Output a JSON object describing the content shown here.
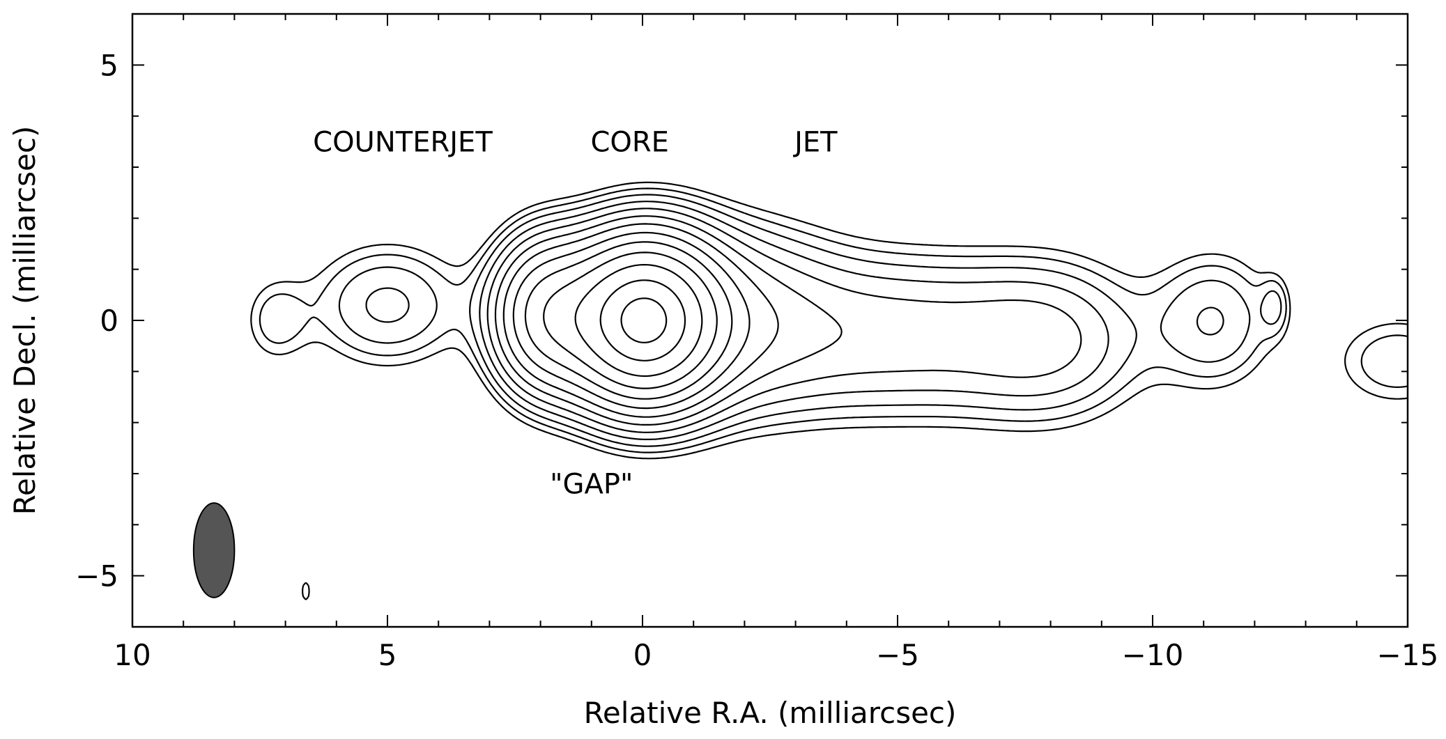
{
  "chart_data": {
    "type": "contour",
    "title": "",
    "xlabel": "Relative R.A. (milliarcsec)",
    "ylabel": "Relative Decl. (milliarcsec)",
    "xlim": [
      10,
      -15
    ],
    "ylim": [
      -6,
      6
    ],
    "x_ticks": [
      10,
      5,
      0,
      -5,
      -10,
      -15
    ],
    "y_ticks": [
      5,
      0,
      -5
    ],
    "x_tick_labels": [
      "10",
      "5",
      "0",
      "−5",
      "−10",
      "−15"
    ],
    "y_tick_labels": [
      "5",
      "0",
      "−5"
    ],
    "x_minor_step": 1,
    "y_minor_step": 1,
    "annotations": [
      {
        "text": "COUNTERJET",
        "x": 4.7,
        "y": 3.5
      },
      {
        "text": "CORE",
        "x": 0.25,
        "y": 3.5
      },
      {
        "text": "JET",
        "x": -3.4,
        "y": 3.5
      },
      {
        "text": "\"GAP\"",
        "x": 1.0,
        "y": -3.2
      }
    ],
    "beam": {
      "x": 8.4,
      "y": -4.5,
      "major_axis": 1.85,
      "minor_axis": 0.8,
      "color": "#555555"
    },
    "components": [
      {
        "name": "core",
        "x": 0.0,
        "y": 0.0,
        "sx": 0.9,
        "sy": 0.95,
        "amp": 10.0
      },
      {
        "name": "inner-jet",
        "x": -1.8,
        "y": 0.0,
        "sx": 1.3,
        "sy": 1.1,
        "amp": 1.2
      },
      {
        "name": "jet",
        "x": -5.0,
        "y": -0.3,
        "sx": 1.9,
        "sy": 1.0,
        "amp": 0.9
      },
      {
        "name": "outer-jet",
        "x": -8.0,
        "y": -0.4,
        "sx": 1.2,
        "sy": 1.0,
        "amp": 0.7
      },
      {
        "name": "jet-knot",
        "x": -11.2,
        "y": 0.0,
        "sx": 0.8,
        "sy": 0.9,
        "amp": 0.55
      },
      {
        "name": "counterjet-inner",
        "x": 1.9,
        "y": 0.1,
        "sx": 0.65,
        "sy": 0.9,
        "amp": 3.0
      },
      {
        "name": "counterjet",
        "x": 5.0,
        "y": 0.3,
        "sx": 1.0,
        "sy": 0.8,
        "amp": 0.6
      },
      {
        "name": "counterjet-tail",
        "x": 7.2,
        "y": 0.0,
        "sx": 0.45,
        "sy": 0.6,
        "amp": 0.32
      },
      {
        "name": "outer-knot",
        "x": -12.4,
        "y": 0.3,
        "sx": 0.2,
        "sy": 0.4,
        "amp": 0.3
      },
      {
        "name": "edge-knot",
        "x": -14.8,
        "y": -0.8,
        "sx": 0.9,
        "sy": 0.65,
        "amp": 0.38
      },
      {
        "name": "noise-blob",
        "x": 6.6,
        "y": -5.3,
        "sx": 0.1,
        "sy": 0.25,
        "amp": 0.25
      }
    ],
    "contour_levels": [
      0.2,
      0.28,
      0.39,
      0.55,
      0.77,
      1.08,
      1.5,
      2.1,
      2.9,
      4.0,
      5.5,
      7.5,
      9.5
    ]
  }
}
